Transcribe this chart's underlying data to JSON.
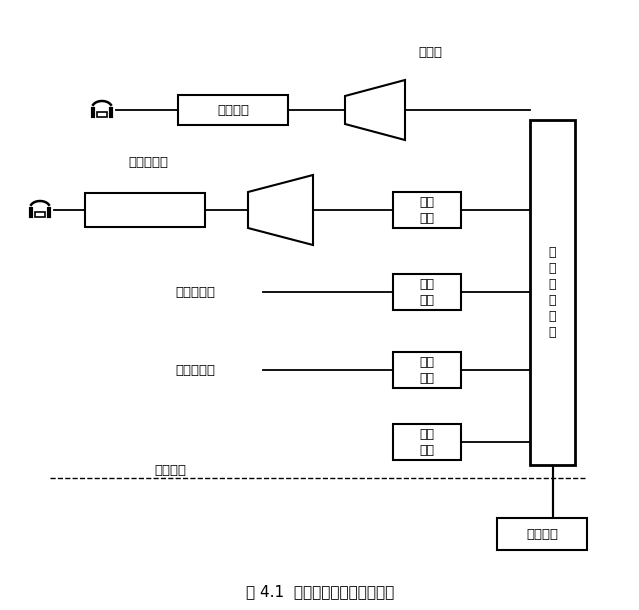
{
  "title": "图 4.1  程控数字交换机基本结构",
  "title_fontsize": 11,
  "background_color": "#ffffff",
  "line_color": "#000000",
  "text_color": "#000000",
  "label_用户级": "用户级",
  "label_远端用户级": "远端用户级",
  "label_数字中继线": "数字中继线",
  "label_模拟中继线": "模拟中继线",
  "label_话路设备": "话路设备",
  "label_用户电路": "用户电路",
  "label_数字终端1": "数字\n终端",
  "label_数字终端2": "数字\n终端",
  "label_模拟终端": "模拟\n终端",
  "label_信令部件": "信令\n部件",
  "label_数字交换网络": "数\n字\n交\n换\n网\n络",
  "label_控制设备": "控制设备"
}
